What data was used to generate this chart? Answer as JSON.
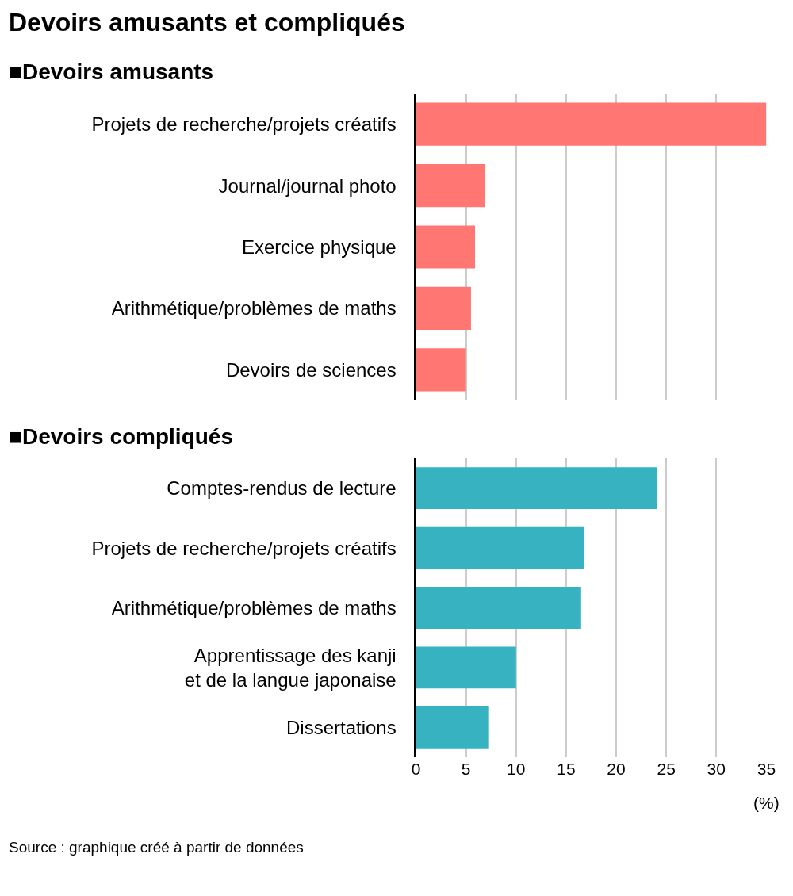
{
  "chart_data": [
    {
      "type": "bar",
      "orientation": "horizontal",
      "title": "Devoirs amusants et compliqués",
      "subtitle": "■Devoirs amusants",
      "categories": [
        "Projets de recherche/projets créatifs",
        "Journal/journal photo",
        "Exercice physique",
        "Arithmétique/problèmes de maths",
        "Devoirs de sciences"
      ],
      "values": [
        35,
        6.9,
        5.9,
        5.5,
        5.0
      ],
      "color": "#ff7672",
      "xlim": [
        0,
        35
      ],
      "xticks": [
        0,
        5,
        10,
        15,
        20,
        25,
        30,
        35
      ],
      "grid": "x",
      "tick_labels": "y"
    },
    {
      "type": "bar",
      "orientation": "horizontal",
      "title": "■Devoirs compliqués",
      "xlabel": "(%)",
      "categories": [
        "Comptes-rendus de lecture",
        "Projets de recherche/projets créatifs",
        "Arithmétique/problèmes de maths",
        "Apprentissage des kanji\net de la langue japonaise",
        "Dissertations"
      ],
      "values": [
        24.1,
        16.8,
        16.5,
        10.0,
        7.3
      ],
      "color": "#36b2c0",
      "xlim": [
        0,
        35
      ],
      "xticks": [
        0,
        5,
        10,
        15,
        20,
        25,
        30,
        35
      ],
      "grid": "x",
      "annotations": [
        "Source : graphique créé à partir de données"
      ]
    }
  ]
}
